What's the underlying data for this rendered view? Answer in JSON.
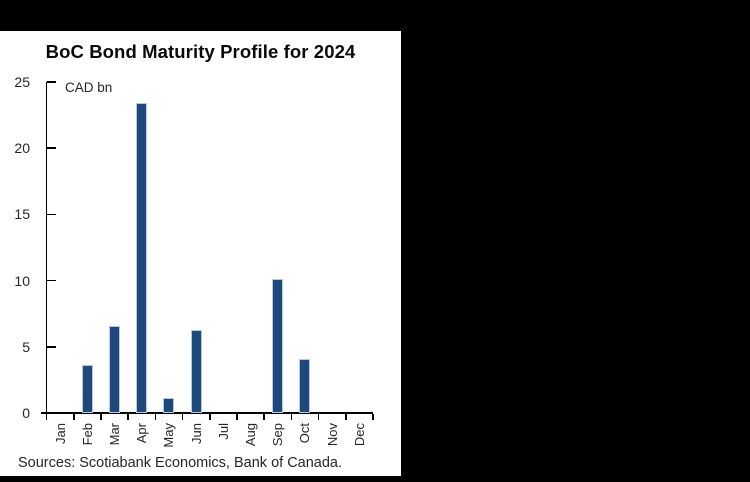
{
  "window": {
    "background_color": "#000000",
    "panel_background_color": "#ffffff"
  },
  "chart_data": {
    "type": "bar",
    "title": "BoC Bond Maturity Profile for 2024",
    "unit_label": "CAD bn",
    "categories": [
      "Jan",
      "Feb",
      "Mar",
      "Apr",
      "May",
      "Jun",
      "Jul",
      "Aug",
      "Sep",
      "Oct",
      "Nov",
      "Dec"
    ],
    "values": [
      0,
      3.6,
      6.6,
      23.4,
      1.1,
      6.3,
      0,
      0,
      10.1,
      4.1,
      0,
      0
    ],
    "xlabel": "",
    "ylabel": "",
    "ylim": [
      0,
      25
    ],
    "yticks": [
      0,
      5,
      10,
      15,
      20,
      25
    ],
    "grid": false,
    "legend_position": "none",
    "bar_color": "#20497B",
    "axis_color": "#000000",
    "label_color": "#262626",
    "source": "Sources: Scotiabank Economics, Bank of Canada."
  }
}
